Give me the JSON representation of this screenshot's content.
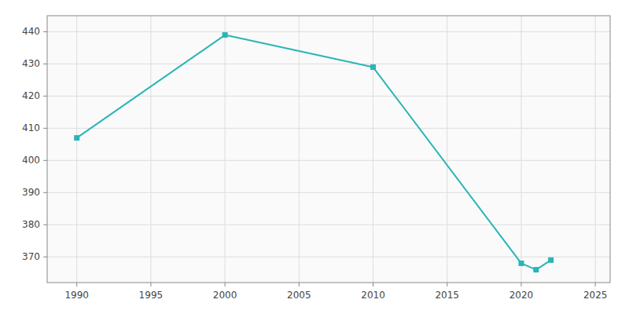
{
  "chart_data": {
    "type": "line",
    "x": [
      1990,
      2000,
      2010,
      2020,
      2021,
      2022
    ],
    "series": [
      {
        "values": [
          407,
          439,
          429,
          368,
          366,
          369
        ],
        "color": "#2ab5b5",
        "marker": "square"
      }
    ],
    "xlim": [
      1988,
      2026
    ],
    "ylim": [
      362,
      445
    ],
    "xticks": [
      1990,
      1995,
      2000,
      2005,
      2010,
      2015,
      2020,
      2025
    ],
    "yticks": [
      370,
      380,
      390,
      400,
      410,
      420,
      430,
      440
    ],
    "grid": true
  }
}
